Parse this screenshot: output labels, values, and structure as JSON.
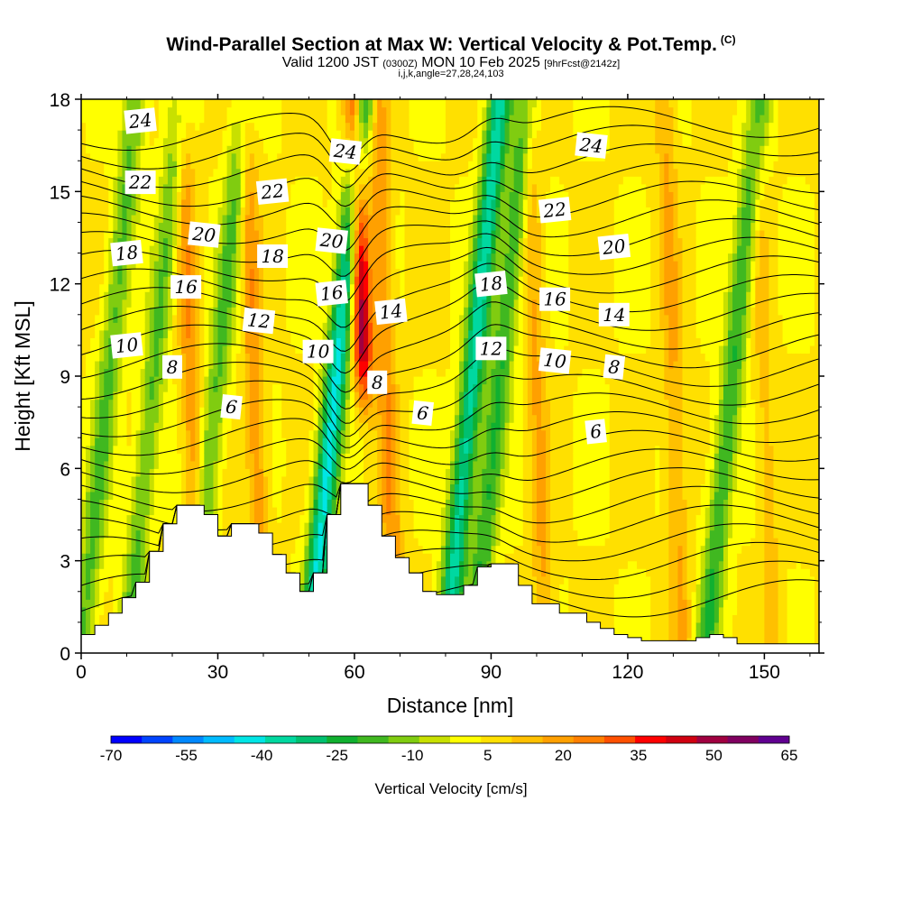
{
  "title": "Wind-Parallel Section at Max W: Vertical Velocity & Pot.Temp.",
  "title_mark": "(C)",
  "subtitle": {
    "valid": "Valid 1200 JST",
    "utc": "(0300Z)",
    "date": "MON 10 Feb 2025",
    "fcst": "[9hrFcst@2142z]"
  },
  "subtitle2": "i,j,k,angle=27,28,24,103",
  "chart_data": {
    "type": "heatmap",
    "xlabel": "Distance [nm]",
    "ylabel": "Height [Kft MSL]",
    "xlim": [
      0,
      162
    ],
    "ylim": [
      0,
      18
    ],
    "x_ticks": [
      0,
      30,
      60,
      90,
      120,
      150
    ],
    "y_ticks": [
      0,
      3,
      6,
      9,
      12,
      15,
      18
    ],
    "colorbar": {
      "title": "Vertical Velocity [cm/s]",
      "labels": [
        "-70",
        "-55",
        "-40",
        "-25",
        "-10",
        "5",
        "20",
        "35",
        "50",
        "65"
      ],
      "min": -70,
      "max": 65,
      "colors": [
        "#0000ff",
        "#0044ff",
        "#0088ff",
        "#00bbff",
        "#00e5e5",
        "#00d8a0",
        "#00c070",
        "#10b030",
        "#40b820",
        "#80cc10",
        "#c8e000",
        "#ffff00",
        "#ffe000",
        "#ffc000",
        "#ffa000",
        "#ff8000",
        "#ff5000",
        "#ff0000",
        "#d00010",
        "#a00040",
        "#800060",
        "#600090"
      ]
    },
    "terrain_kft": [
      [
        0,
        0.6
      ],
      [
        3,
        0.9
      ],
      [
        6,
        1.3
      ],
      [
        9,
        1.8
      ],
      [
        12,
        2.3
      ],
      [
        15,
        3.3
      ],
      [
        18,
        4.2
      ],
      [
        21,
        4.8
      ],
      [
        24,
        4.8
      ],
      [
        27,
        4.5
      ],
      [
        30,
        3.8
      ],
      [
        33,
        4.2
      ],
      [
        36,
        4.2
      ],
      [
        39,
        3.9
      ],
      [
        42,
        3.2
      ],
      [
        45,
        2.6
      ],
      [
        48,
        2.0
      ],
      [
        51,
        2.6
      ],
      [
        54,
        4.5
      ],
      [
        57,
        5.5
      ],
      [
        60,
        5.5
      ],
      [
        63,
        4.8
      ],
      [
        66,
        3.8
      ],
      [
        69,
        3.1
      ],
      [
        72,
        2.6
      ],
      [
        75,
        2.0
      ],
      [
        78,
        1.9
      ],
      [
        81,
        1.9
      ],
      [
        84,
        2.2
      ],
      [
        87,
        2.8
      ],
      [
        90,
        2.9
      ],
      [
        93,
        2.9
      ],
      [
        96,
        2.2
      ],
      [
        99,
        1.6
      ],
      [
        102,
        1.6
      ],
      [
        105,
        1.3
      ],
      [
        108,
        1.3
      ],
      [
        111,
        1.0
      ],
      [
        114,
        0.8
      ],
      [
        117,
        0.6
      ],
      [
        120,
        0.5
      ],
      [
        123,
        0.4
      ],
      [
        126,
        0.4
      ],
      [
        129,
        0.4
      ],
      [
        132,
        0.4
      ],
      [
        135,
        0.5
      ],
      [
        138,
        0.6
      ],
      [
        141,
        0.5
      ],
      [
        144,
        0.3
      ],
      [
        147,
        0.3
      ],
      [
        150,
        0.3
      ],
      [
        153,
        0.3
      ],
      [
        156,
        0.3
      ],
      [
        159,
        0.3
      ],
      [
        162,
        0.3
      ]
    ],
    "updrafts": [
      {
        "x": 62,
        "value": 55
      },
      {
        "x": 24,
        "value": 20
      },
      {
        "x": 38,
        "value": 20
      },
      {
        "x": 67,
        "value": 20
      },
      {
        "x": 100,
        "value": 15
      },
      {
        "x": 130,
        "value": 15
      },
      {
        "x": 150,
        "value": 10
      }
    ],
    "downdrafts": [
      {
        "x": 6,
        "value": -20
      },
      {
        "x": 16,
        "value": -20
      },
      {
        "x": 30,
        "value": -20
      },
      {
        "x": 56,
        "value": -45
      },
      {
        "x": 86,
        "value": -40
      },
      {
        "x": 92,
        "value": -25
      },
      {
        "x": 143,
        "value": -25
      }
    ],
    "theta_contours": {
      "interval": 2,
      "labels": [
        {
          "text": "24",
          "x": 13,
          "y": 17.3
        },
        {
          "text": "22",
          "x": 13,
          "y": 15.3
        },
        {
          "text": "20",
          "x": 27,
          "y": 13.6
        },
        {
          "text": "18",
          "x": 10,
          "y": 13.0
        },
        {
          "text": "16",
          "x": 23,
          "y": 11.9
        },
        {
          "text": "12",
          "x": 39,
          "y": 10.8
        },
        {
          "text": "10",
          "x": 10,
          "y": 10.0
        },
        {
          "text": "8",
          "x": 20,
          "y": 9.3
        },
        {
          "text": "6",
          "x": 33,
          "y": 8.0
        },
        {
          "text": "22",
          "x": 42,
          "y": 15.0
        },
        {
          "text": "18",
          "x": 42,
          "y": 12.9
        },
        {
          "text": "20",
          "x": 55,
          "y": 13.4
        },
        {
          "text": "16",
          "x": 55,
          "y": 11.7
        },
        {
          "text": "10",
          "x": 52,
          "y": 9.8
        },
        {
          "text": "24",
          "x": 58,
          "y": 16.3
        },
        {
          "text": "14",
          "x": 68,
          "y": 11.1
        },
        {
          "text": "8",
          "x": 65,
          "y": 8.8
        },
        {
          "text": "6",
          "x": 75,
          "y": 7.8
        },
        {
          "text": "18",
          "x": 90,
          "y": 12.0
        },
        {
          "text": "12",
          "x": 90,
          "y": 9.9
        },
        {
          "text": "24",
          "x": 112,
          "y": 16.5
        },
        {
          "text": "22",
          "x": 104,
          "y": 14.4
        },
        {
          "text": "16",
          "x": 104,
          "y": 11.5
        },
        {
          "text": "10",
          "x": 104,
          "y": 9.5
        },
        {
          "text": "20",
          "x": 117,
          "y": 13.2
        },
        {
          "text": "14",
          "x": 117,
          "y": 11.0
        },
        {
          "text": "8",
          "x": 117,
          "y": 9.3
        },
        {
          "text": "6",
          "x": 113,
          "y": 7.2
        }
      ]
    }
  }
}
